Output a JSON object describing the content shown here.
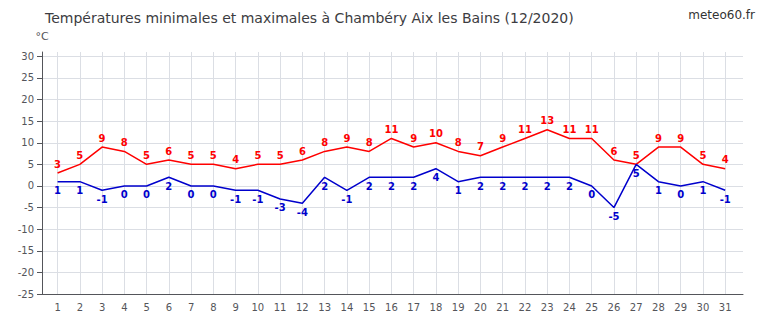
{
  "chart_data": {
    "type": "line",
    "title": "Températures minimales et maximales à Chambéry Aix les Bains (12/2020)",
    "ylabel": "°C",
    "x": [
      1,
      2,
      3,
      4,
      5,
      6,
      7,
      8,
      9,
      10,
      11,
      12,
      13,
      14,
      15,
      16,
      17,
      18,
      19,
      20,
      21,
      22,
      23,
      24,
      25,
      26,
      27,
      28,
      29,
      30,
      31
    ],
    "xlim": [
      0.3,
      31.8
    ],
    "xticks": [
      1,
      2,
      3,
      4,
      5,
      6,
      7,
      8,
      9,
      10,
      11,
      12,
      13,
      14,
      15,
      16,
      17,
      18,
      19,
      20,
      21,
      22,
      23,
      24,
      25,
      26,
      27,
      28,
      29,
      30,
      31
    ],
    "ylim": [
      -25,
      31
    ],
    "yticks": [
      -25,
      -20,
      -15,
      -10,
      -5,
      0,
      5,
      10,
      15,
      20,
      25,
      30
    ],
    "series": [
      {
        "color": "#ff0000",
        "values": [
          3,
          5,
          9,
          8,
          5,
          6,
          5,
          5,
          4,
          5,
          5,
          6,
          8,
          9,
          8,
          11,
          9,
          10,
          8,
          7,
          9,
          11,
          13,
          11,
          11,
          6,
          5,
          9,
          9,
          5,
          4
        ]
      },
      {
        "color": "#0000cc",
        "values": [
          1,
          1,
          -1,
          0,
          0,
          2,
          0,
          0,
          -1,
          -1,
          -3,
          -4,
          2,
          -1,
          2,
          2,
          2,
          4,
          1,
          2,
          2,
          2,
          2,
          2,
          0,
          -5,
          5,
          1,
          0,
          1,
          -1
        ]
      }
    ],
    "grid": true,
    "data_labels": true,
    "annotations": [
      {
        "text": "meteo60.fr"
      }
    ]
  }
}
